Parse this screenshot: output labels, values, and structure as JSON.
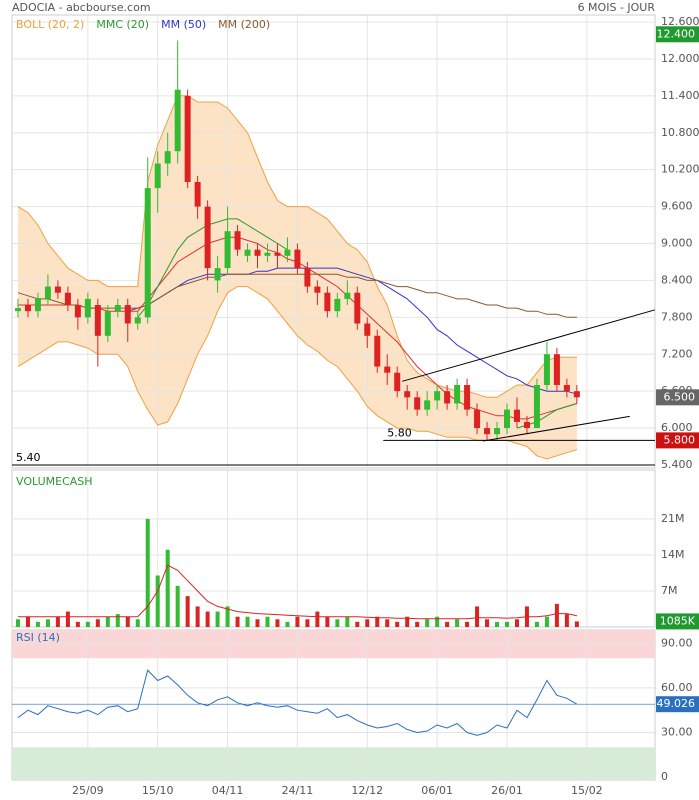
{
  "header": {
    "title": "ADOCIA - abcbourse.com",
    "period": "6 MOIS - JOUR"
  },
  "chart_data": [
    {
      "type": "candlestick",
      "xlim": [
        -0.6,
        63.83
      ],
      "ylim": [
        5.4,
        12.6
      ],
      "yticks": [
        {
          "value": 5.4,
          "label": "5.400"
        },
        {
          "value": 6.0,
          "label": "6.000"
        },
        {
          "value": 6.6,
          "label": "6.600"
        },
        {
          "value": 7.2,
          "label": "7.200"
        },
        {
          "value": 7.8,
          "label": "7.800"
        },
        {
          "value": 8.4,
          "label": "8.400"
        },
        {
          "value": 9.0,
          "label": "9.000"
        },
        {
          "value": 9.6,
          "label": "9.600"
        },
        {
          "value": 10.2,
          "label": "10.200"
        },
        {
          "value": 10.8,
          "label": "10.800"
        },
        {
          "value": 11.4,
          "label": "11.400"
        },
        {
          "value": 12.0,
          "label": "12.000"
        },
        {
          "value": 12.6,
          "label": "12.600"
        }
      ],
      "up_color": "#33bb33",
      "down_color": "#dd2222",
      "ohlc": {
        "open": [
          7.9,
          8.0,
          7.9,
          8.1,
          8.3,
          8.2,
          8.0,
          7.8,
          8.0,
          7.5,
          7.9,
          8.0,
          7.7,
          7.8,
          9.9,
          10.3,
          10.5,
          11.4,
          10.0,
          9.6,
          8.4,
          8.6,
          9.2,
          8.8,
          8.9,
          8.8,
          8.85,
          8.8,
          8.9,
          8.6,
          8.3,
          8.2,
          7.9,
          8.1,
          8.2,
          7.7,
          7.5,
          7.0,
          6.9,
          6.6,
          6.5,
          6.3,
          6.45,
          6.6,
          6.4,
          6.7,
          6.3,
          6.0,
          5.9,
          6.0,
          6.3,
          6.1,
          6.0,
          6.7,
          7.2,
          6.7,
          6.6
        ],
        "high": [
          8.1,
          8.1,
          8.2,
          8.5,
          8.4,
          8.3,
          8.1,
          8.2,
          8.1,
          8.0,
          8.1,
          8.1,
          7.9,
          10.4,
          10.5,
          10.8,
          12.3,
          11.5,
          10.1,
          9.7,
          8.8,
          9.6,
          9.3,
          9.0,
          9.0,
          9.0,
          9.0,
          9.1,
          9.0,
          8.7,
          8.4,
          8.3,
          8.2,
          8.4,
          8.3,
          7.8,
          7.6,
          7.2,
          7.0,
          6.7,
          6.6,
          6.6,
          6.7,
          6.7,
          6.8,
          6.8,
          6.4,
          6.1,
          6.1,
          6.4,
          6.5,
          6.2,
          6.8,
          7.4,
          7.3,
          6.8,
          6.7
        ],
        "low": [
          7.8,
          7.8,
          7.8,
          8.0,
          8.1,
          7.9,
          7.6,
          7.7,
          7.0,
          7.4,
          7.8,
          7.4,
          7.6,
          7.7,
          9.5,
          10.1,
          10.3,
          9.9,
          9.4,
          8.4,
          8.2,
          8.5,
          8.8,
          8.7,
          8.6,
          8.7,
          8.6,
          8.7,
          8.5,
          8.2,
          8.0,
          7.8,
          7.8,
          8.0,
          7.6,
          7.3,
          6.9,
          6.7,
          6.5,
          6.3,
          6.2,
          6.2,
          6.3,
          6.3,
          6.3,
          6.2,
          5.9,
          5.8,
          5.8,
          5.9,
          6.0,
          5.9,
          6.0,
          6.6,
          6.6,
          6.5,
          6.4
        ],
        "close": [
          7.95,
          7.9,
          8.1,
          8.3,
          8.2,
          8.0,
          7.8,
          8.1,
          7.5,
          7.9,
          8.0,
          7.7,
          7.8,
          9.9,
          10.3,
          10.5,
          11.5,
          10.0,
          9.6,
          8.6,
          8.6,
          9.2,
          8.9,
          8.9,
          8.8,
          8.85,
          8.8,
          8.9,
          8.6,
          8.3,
          8.2,
          7.9,
          8.1,
          8.2,
          7.7,
          7.5,
          7.0,
          6.9,
          6.6,
          6.5,
          6.3,
          6.45,
          6.6,
          6.4,
          6.7,
          6.3,
          6.0,
          5.9,
          6.0,
          6.3,
          6.1,
          6.0,
          6.7,
          7.2,
          6.7,
          6.6,
          6.5
        ]
      },
      "bands": {
        "name": "BOLL (20, 2)",
        "color": "#f0a040",
        "fill": "#fde3c6",
        "middle_color": "#e03030",
        "upper": [
          9.6,
          9.5,
          9.3,
          9.0,
          8.8,
          8.6,
          8.5,
          8.4,
          8.4,
          8.3,
          8.3,
          8.3,
          8.3,
          10.0,
          10.6,
          11.0,
          11.4,
          11.4,
          11.3,
          11.3,
          11.3,
          11.2,
          11.0,
          10.8,
          10.4,
          10.0,
          9.7,
          9.6,
          9.6,
          9.6,
          9.5,
          9.4,
          9.2,
          9.0,
          8.9,
          8.7,
          8.3,
          8.0,
          7.5,
          7.1,
          6.9,
          6.8,
          6.7,
          6.65,
          6.6,
          6.6,
          6.55,
          6.5,
          6.5,
          6.6,
          6.7,
          6.7,
          6.9,
          7.1,
          7.15,
          7.15,
          7.15
        ],
        "middle": [
          8.0,
          8.0,
          8.0,
          8.0,
          8.0,
          8.0,
          8.0,
          7.95,
          7.95,
          7.9,
          7.9,
          7.9,
          7.9,
          8.1,
          8.3,
          8.5,
          8.7,
          8.8,
          8.9,
          9.0,
          9.05,
          9.1,
          9.1,
          9.05,
          9.0,
          8.9,
          8.85,
          8.75,
          8.7,
          8.6,
          8.5,
          8.4,
          8.3,
          8.15,
          8.0,
          7.85,
          7.7,
          7.55,
          7.4,
          7.2,
          7.0,
          6.85,
          6.7,
          6.55,
          6.45,
          6.35,
          6.3,
          6.25,
          6.2,
          6.2,
          6.15,
          6.15,
          6.2,
          6.25,
          6.3,
          6.35,
          6.4
        ],
        "lower": [
          7.0,
          7.1,
          7.2,
          7.3,
          7.4,
          7.4,
          7.35,
          7.3,
          7.2,
          7.2,
          7.2,
          7.0,
          6.6,
          6.3,
          6.05,
          6.1,
          6.4,
          6.8,
          7.2,
          7.5,
          7.9,
          8.2,
          8.3,
          8.3,
          8.2,
          8.1,
          7.9,
          7.7,
          7.5,
          7.35,
          7.25,
          7.1,
          7.0,
          6.8,
          6.6,
          6.35,
          6.2,
          6.1,
          6.0,
          6.0,
          5.95,
          5.95,
          5.9,
          5.85,
          5.85,
          5.85,
          5.8,
          5.8,
          5.8,
          5.8,
          5.75,
          5.7,
          5.55,
          5.5,
          5.55,
          5.6,
          5.65
        ]
      },
      "series": [
        {
          "name": "MMC (20)",
          "color": "#2a9a2a",
          "values": [
            null,
            null,
            null,
            null,
            null,
            null,
            null,
            null,
            null,
            null,
            null,
            null,
            7.8,
            8.0,
            8.3,
            8.6,
            8.9,
            9.1,
            9.2,
            9.3,
            9.35,
            9.4,
            9.4,
            9.3,
            9.2,
            9.1,
            9.0,
            8.9,
            null,
            null,
            null,
            null,
            null,
            null,
            null,
            null,
            null,
            null,
            null,
            null,
            null,
            null,
            null,
            null,
            null,
            null,
            null,
            null,
            null,
            null,
            6.0,
            6.05,
            6.1,
            6.2,
            6.3,
            6.35,
            6.4
          ]
        },
        {
          "name": "MM (50)",
          "color": "#3333cc",
          "values": [
            null,
            null,
            null,
            null,
            null,
            null,
            null,
            null,
            null,
            null,
            null,
            7.9,
            7.95,
            8.0,
            8.1,
            8.2,
            8.3,
            8.4,
            8.45,
            8.5,
            8.5,
            8.5,
            8.5,
            8.5,
            8.55,
            8.55,
            8.6,
            8.6,
            8.6,
            8.6,
            8.6,
            8.6,
            8.6,
            8.55,
            8.5,
            8.45,
            8.4,
            8.3,
            8.2,
            8.1,
            7.95,
            7.8,
            7.6,
            7.5,
            7.35,
            7.25,
            7.15,
            7.05,
            6.95,
            6.85,
            6.8,
            6.7,
            6.65,
            6.6,
            6.6,
            6.6,
            6.55
          ]
        },
        {
          "name": "MM (200)",
          "color": "#8b5a2b",
          "values": [
            8.2,
            8.15,
            8.1,
            8.1,
            8.05,
            8.0,
            8.0,
            7.95,
            7.95,
            7.95,
            7.95,
            7.95,
            7.95,
            8.0,
            8.1,
            8.2,
            8.3,
            8.35,
            8.4,
            8.45,
            8.45,
            8.5,
            8.5,
            8.5,
            8.5,
            8.5,
            8.5,
            8.5,
            8.5,
            8.5,
            8.5,
            8.5,
            8.5,
            8.45,
            8.45,
            8.4,
            8.4,
            8.35,
            8.3,
            8.3,
            8.25,
            8.2,
            8.2,
            8.15,
            8.1,
            8.1,
            8.05,
            8.0,
            8.0,
            7.95,
            7.95,
            7.9,
            7.9,
            7.85,
            7.85,
            7.8,
            7.8
          ]
        }
      ],
      "levels": [
        {
          "value": 5.4,
          "label": "5.40",
          "x_start": -0.6
        },
        {
          "value": 5.8,
          "label": "5.80",
          "x_start": 36.6
        }
      ],
      "trendlines": [
        {
          "x": [
            38.5,
            63.8
          ],
          "y": [
            6.76,
            7.92
          ]
        },
        {
          "x": [
            46.6,
            61.3
          ],
          "y": [
            5.79,
            6.19
          ]
        }
      ],
      "price_markers": [
        {
          "value": 12.4,
          "label": "12.400",
          "color": "#1e9a2e"
        },
        {
          "value": 6.5,
          "label": "6.500",
          "color": "#666666"
        },
        {
          "value": 5.8,
          "label": "5.800",
          "color": "#cc1111"
        }
      ]
    },
    {
      "type": "bar",
      "title": "VOLUMECASH",
      "title_color": "#2a9a2a",
      "xlim": [
        -0.6,
        63.83
      ],
      "ylim": [
        0,
        30.5
      ],
      "yticks": [
        {
          "value": 7,
          "label": "7M"
        },
        {
          "value": 14,
          "label": "14M"
        },
        {
          "value": 21,
          "label": "21M"
        }
      ],
      "values": [
        1.5,
        2,
        1,
        1.5,
        2,
        3,
        1,
        1,
        1.5,
        2,
        2.5,
        2,
        1.5,
        21,
        10,
        15,
        8,
        6,
        4,
        3,
        3,
        4,
        2,
        2,
        1.5,
        2,
        1.5,
        1,
        2,
        1.5,
        3,
        2,
        1.5,
        2,
        1,
        1.5,
        2,
        1.5,
        1,
        2,
        1,
        1.5,
        2,
        1,
        1.5,
        1,
        4,
        1.5,
        1,
        1,
        1.5,
        4,
        1,
        2,
        4.5,
        2.5,
        1.085
      ],
      "average": {
        "color": "#dd2222",
        "values": [
          2,
          2,
          2,
          2,
          2,
          2,
          2,
          2,
          2,
          2,
          2,
          2,
          2,
          4,
          7,
          12,
          11,
          9,
          7,
          5,
          4,
          3.5,
          3,
          2.8,
          2.6,
          2.5,
          2.4,
          2.3,
          2.2,
          2.1,
          2,
          2,
          2,
          2,
          2,
          1.9,
          1.8,
          1.8,
          1.7,
          1.7,
          1.6,
          1.6,
          1.6,
          1.6,
          1.6,
          1.6,
          1.8,
          1.8,
          1.8,
          1.7,
          1.8,
          2,
          2,
          2.2,
          2.6,
          2.6,
          2.2
        ]
      },
      "last_marker": {
        "value": 1.085,
        "label": "1085K",
        "color": "#1e9a2e"
      }
    },
    {
      "type": "line",
      "title": "RSI (14)",
      "color": "#2a6fc0",
      "xlim": [
        -0.6,
        63.83
      ],
      "ylim": [
        0,
        99
      ],
      "yticks": [
        0,
        {
          "value": 30,
          "label": "30.00"
        },
        {
          "value": 60,
          "label": "60.00"
        },
        {
          "value": 90,
          "label": "90.00"
        }
      ],
      "xticks": [
        {
          "value": 7,
          "label": "25/09"
        },
        {
          "value": 14,
          "label": "15/10"
        },
        {
          "value": 21,
          "label": "04/11"
        },
        {
          "value": 28,
          "label": "24/11"
        },
        {
          "value": 35,
          "label": "12/12"
        },
        {
          "value": 42,
          "label": "06/01"
        },
        {
          "value": 49,
          "label": "26/01"
        },
        {
          "value": 57,
          "label": "15/02"
        }
      ],
      "overbought": 80,
      "oversold": 20,
      "high_fill": "#fbd6d6",
      "low_fill": "#d6ecd6",
      "values": [
        40,
        45,
        42,
        48,
        46,
        44,
        43,
        45,
        42,
        47,
        48,
        44,
        46,
        72,
        65,
        68,
        62,
        55,
        50,
        48,
        52,
        54,
        50,
        48,
        50,
        48,
        47,
        48,
        45,
        44,
        43,
        46,
        40,
        42,
        38,
        35,
        33,
        34,
        36,
        32,
        30,
        31,
        35,
        33,
        36,
        30,
        28,
        30,
        35,
        33,
        45,
        40,
        52,
        65,
        55,
        53,
        49.026
      ],
      "last_marker": {
        "value": 49.026,
        "label": "49.026",
        "color": "#2a6fc0"
      }
    }
  ]
}
